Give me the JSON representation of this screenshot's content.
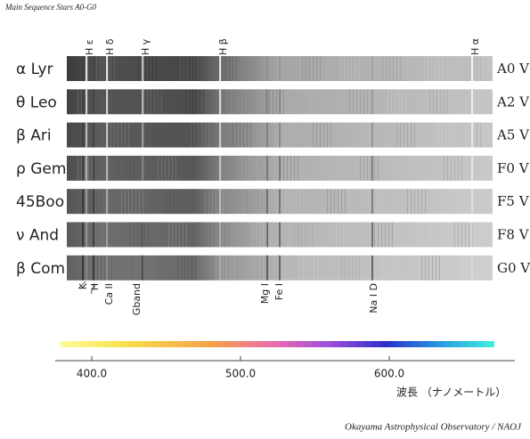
{
  "header": {
    "title": "Main Sequence Stars A0-G0"
  },
  "stars": [
    {
      "name": "α Lyr",
      "class": "A0 V"
    },
    {
      "name": "θ Leo",
      "class": "A2 V"
    },
    {
      "name": "β Ari",
      "class": "A5 V"
    },
    {
      "name": "ρ Gem",
      "class": "F0 V"
    },
    {
      "name": "45Boo",
      "class": "F5 V"
    },
    {
      "name": "ν And",
      "class": "F8 V"
    },
    {
      "name": "β Com",
      "class": "G0 V"
    }
  ],
  "top_lines": [
    "H ε",
    "H δ",
    "H γ",
    "H β",
    "H α"
  ],
  "bottom_lines": [
    "K",
    "H",
    "Ca II",
    "Gband",
    "Mg I",
    "Fe I",
    "Na I D"
  ],
  "axis": {
    "ticks": [
      "400.0",
      "500.0",
      "600.0"
    ],
    "label": "波長 （ナノメートル）"
  },
  "footer": {
    "credit": "Okayama Astrophysical Observatory / NAOJ"
  }
}
